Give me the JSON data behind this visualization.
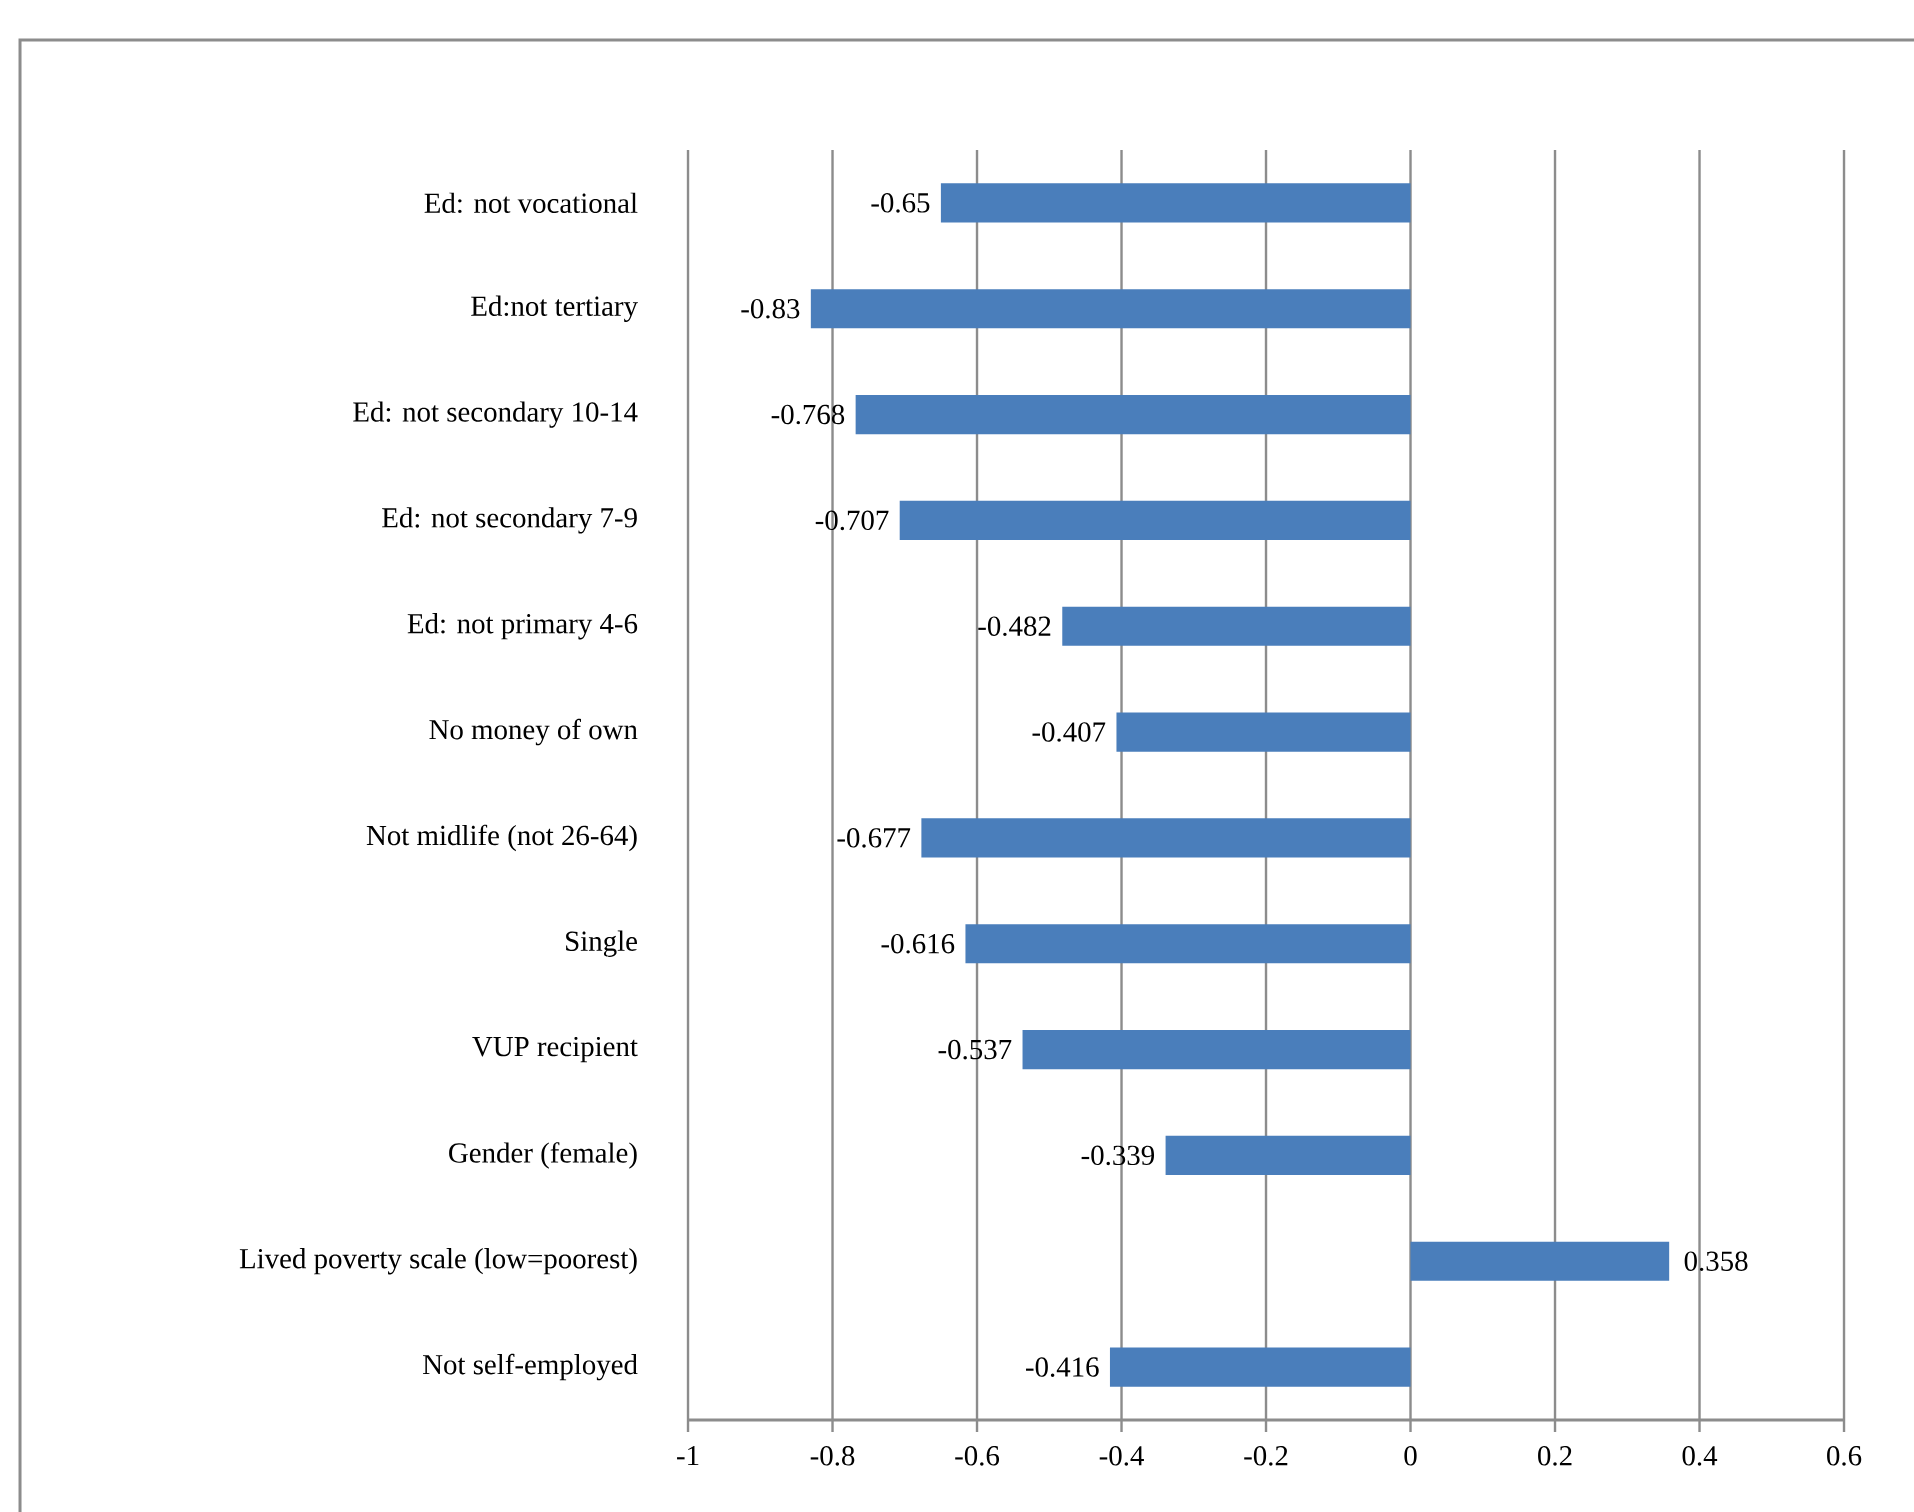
{
  "chart_data": {
    "type": "bar",
    "orientation": "horizontal",
    "categories": [
      "Ed: not vocational",
      "Ed:not  tertiary",
      "Ed: not secondary 10-14",
      "Ed: not secondary 7-9",
      "Ed: not primary 4-6",
      "No money of own",
      "Not midlife (not 26-64)",
      "Single",
      "VUP recipient",
      "Gender (female)",
      "Lived poverty scale (low=poorest)",
      "Not self-employed"
    ],
    "values": [
      -0.65,
      -0.83,
      -0.768,
      -0.707,
      -0.482,
      -0.407,
      -0.677,
      -0.616,
      -0.537,
      -0.339,
      0.358,
      -0.416
    ],
    "color": "#4a7ebb",
    "xlim": [
      -1,
      0.6
    ],
    "xticks": [
      -1,
      -0.8,
      -0.6,
      -0.4,
      -0.2,
      0,
      0.2,
      0.4,
      0.6
    ],
    "grid": "x",
    "data_labels": true
  }
}
